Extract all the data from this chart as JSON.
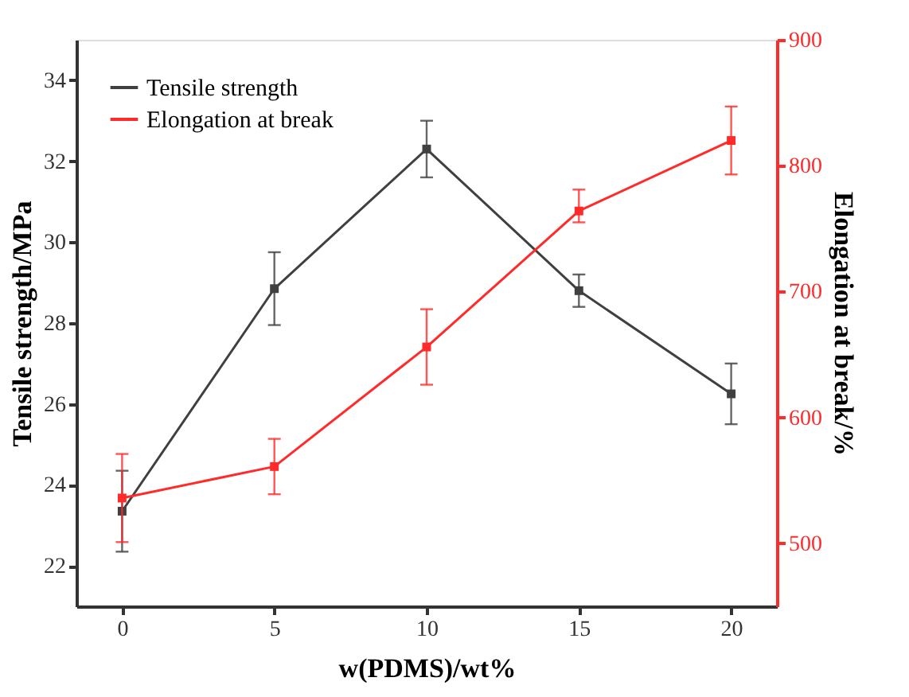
{
  "chart_data": {
    "type": "line",
    "xlabel": "w(PDMS)/wt%",
    "ylabel": "Tensile strength/MPa",
    "y2label": "Elongation at break/%",
    "x": [
      0,
      5,
      10,
      15,
      20
    ],
    "series": [
      {
        "name": "Tensile strength",
        "color": "#404040",
        "values": [
          23.35,
          28.85,
          32.3,
          28.8,
          26.25
        ],
        "errors": [
          1.0,
          0.9,
          0.7,
          0.4,
          0.75
        ]
      },
      {
        "name": "Elongation at break",
        "color": "#ff2a2a",
        "axis": "y2",
        "values": [
          536,
          561,
          656,
          764,
          820
        ],
        "errors": [
          35,
          22,
          30,
          [
            755,
            781
          ],
          27
        ]
      }
    ],
    "xlim": [
      -1.5,
      21.5
    ],
    "xticks": [
      0,
      5,
      10,
      15,
      20
    ],
    "ylim": [
      21,
      35
    ],
    "yticks": [
      22,
      24,
      26,
      28,
      30,
      32,
      34
    ],
    "y2lim": [
      450,
      900
    ],
    "y2ticks": [
      500,
      600,
      700,
      800,
      900
    ],
    "marker": "square",
    "line_style": "solid",
    "grid": false,
    "legend": "top left"
  }
}
